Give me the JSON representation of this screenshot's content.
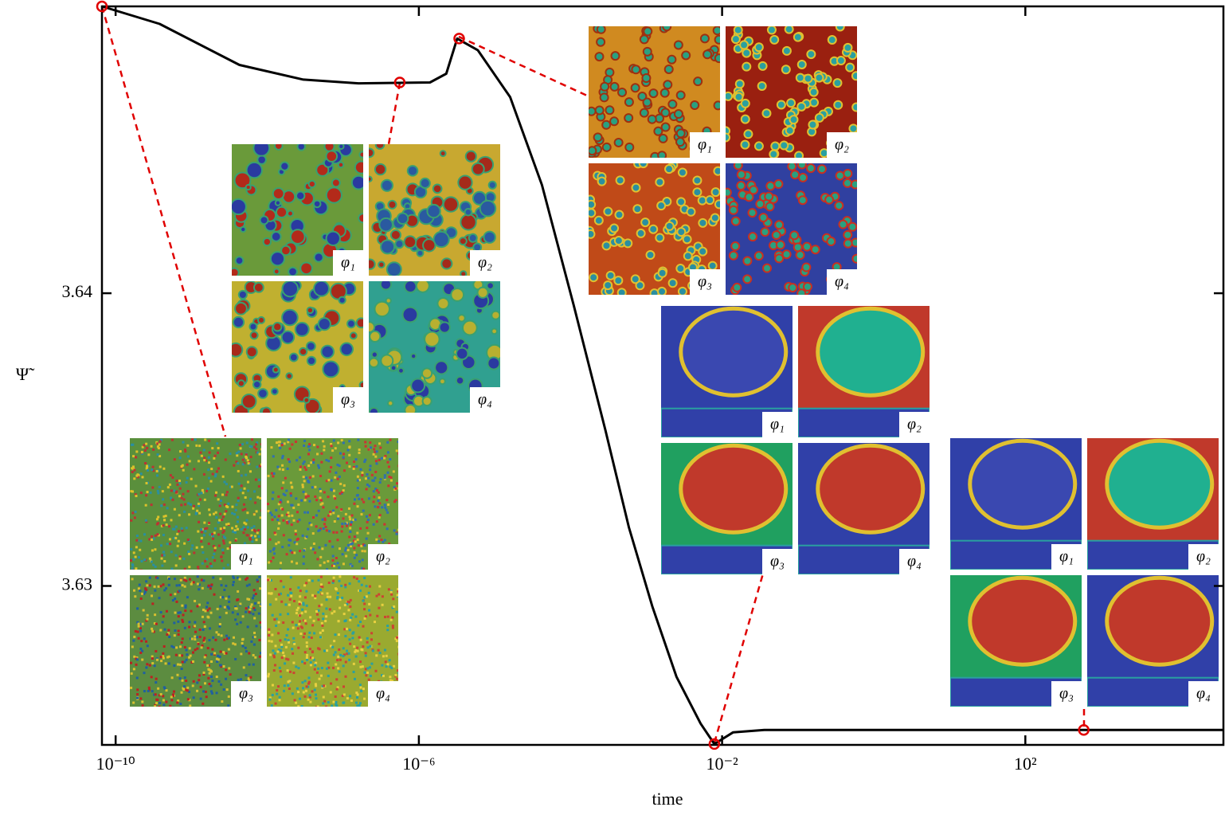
{
  "chart_data": {
    "type": "line",
    "x_label": "time",
    "y_label": "Ψ̃",
    "x_scale": "log",
    "xlim": [
      6.6e-11,
      41000.0
    ],
    "ylim": [
      3.62457,
      3.6498
    ],
    "xticks": [
      {
        "value": 1e-10,
        "label": "10⁻¹⁰"
      },
      {
        "value": 1e-06,
        "label": "10⁻⁶"
      },
      {
        "value": 0.01,
        "label": "10⁻²"
      },
      {
        "value": 100,
        "label": "10²"
      }
    ],
    "yticks": [
      3.63,
      3.64
    ],
    "series": [
      {
        "color": "#000000",
        "x": [
          6.6e-11,
          3.8e-10,
          4.3e-09,
          3e-08,
          1.6e-07,
          1.4e-06,
          2.3e-06,
          3.2e-06,
          6e-06,
          1.6e-05,
          4.2e-05,
          0.00011,
          0.00029,
          0.00059,
          0.0012,
          0.0025,
          0.0052,
          0.0079,
          0.014,
          0.036,
          41000.0
        ],
        "values": [
          3.6498,
          3.6492,
          3.6478,
          3.6473,
          3.64717,
          3.6472,
          3.6475,
          3.6487,
          3.6483,
          3.6467,
          3.6437,
          3.6396,
          3.6353,
          3.632,
          3.6293,
          3.6269,
          3.6253,
          3.6246,
          3.625,
          3.62508,
          3.62508
        ]
      },
      {
        "color": "#e00000",
        "marker": "circle",
        "x": [
          6.6e-11,
          5.6e-07,
          3.4e-06,
          0.0079,
          590.0
        ],
        "values": [
          3.6498,
          3.6472,
          3.6487,
          3.6246,
          3.62508
        ]
      }
    ],
    "panel_labels": [
      "φ₁",
      "φ₂",
      "φ₃",
      "φ₄"
    ]
  }
}
